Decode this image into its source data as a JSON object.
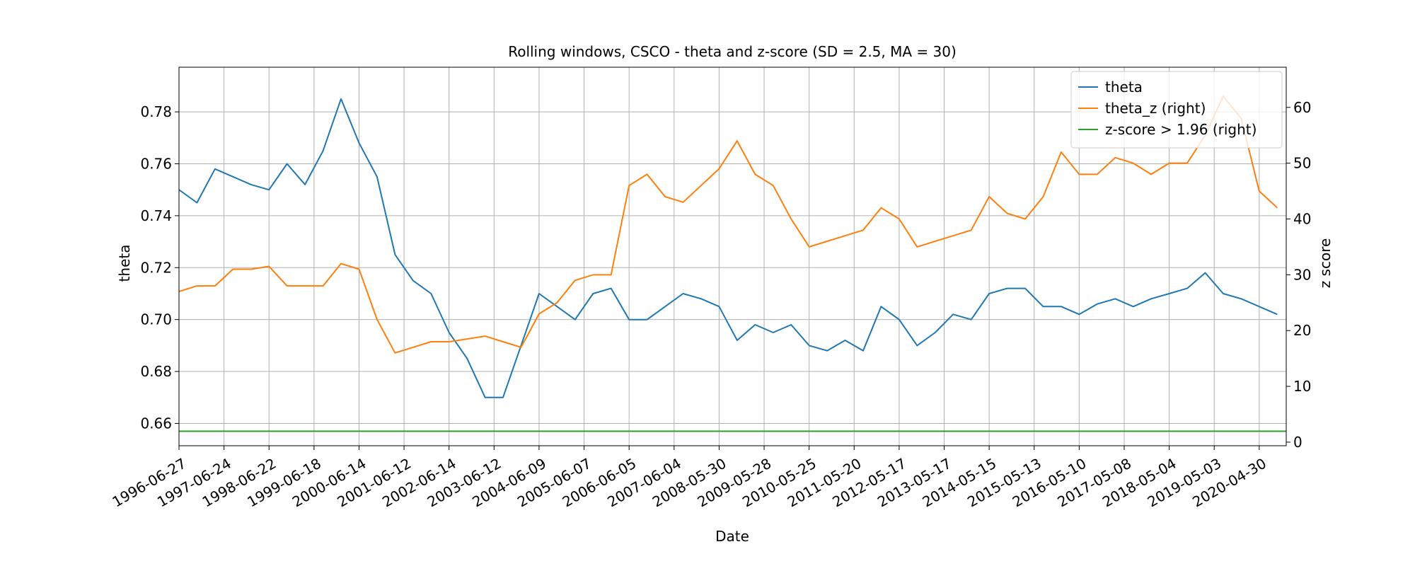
{
  "chart_data": {
    "type": "line",
    "title": "Rolling windows, CSCO - theta and z-score (SD = 2.5, MA = 30)",
    "x_label": "Date",
    "y_label": "theta",
    "y2_label": "z score",
    "grid": true,
    "legend": "upper right",
    "xlim": [
      0,
      6150
    ],
    "xticks": [
      {
        "value": 0,
        "label": "1996-06-27"
      },
      {
        "value": 250,
        "label": "1997-06-24"
      },
      {
        "value": 500,
        "label": "1998-06-22"
      },
      {
        "value": 750,
        "label": "1999-06-18"
      },
      {
        "value": 1000,
        "label": "2000-06-14"
      },
      {
        "value": 1250,
        "label": "2001-06-12"
      },
      {
        "value": 1500,
        "label": "2002-06-14"
      },
      {
        "value": 1750,
        "label": "2003-06-12"
      },
      {
        "value": 2000,
        "label": "2004-06-09"
      },
      {
        "value": 2250,
        "label": "2005-06-07"
      },
      {
        "value": 2500,
        "label": "2006-06-05"
      },
      {
        "value": 2750,
        "label": "2007-06-04"
      },
      {
        "value": 3000,
        "label": "2008-05-30"
      },
      {
        "value": 3250,
        "label": "2009-05-28"
      },
      {
        "value": 3500,
        "label": "2010-05-25"
      },
      {
        "value": 3750,
        "label": "2011-05-20"
      },
      {
        "value": 4000,
        "label": "2012-05-17"
      },
      {
        "value": 4250,
        "label": "2013-05-17"
      },
      {
        "value": 4500,
        "label": "2014-05-15"
      },
      {
        "value": 4750,
        "label": "2015-05-13"
      },
      {
        "value": 5000,
        "label": "2016-05-10"
      },
      {
        "value": 5250,
        "label": "2017-05-08"
      },
      {
        "value": 5500,
        "label": "2018-05-04"
      },
      {
        "value": 5750,
        "label": "2019-05-03"
      },
      {
        "value": 6000,
        "label": "2020-04-30"
      }
    ],
    "ylim": [
      0.6514,
      0.7972
    ],
    "yticks": [
      0.66,
      0.68,
      {
        "value": 0.7,
        "label": "0.70"
      },
      0.72,
      0.74,
      0.76,
      0.78
    ],
    "y2lim": [
      -0.64,
      67.2
    ],
    "y2ticks": [
      0,
      10,
      20,
      30,
      40,
      50,
      60
    ],
    "x": [
      0,
      100,
      200,
      300,
      400,
      500,
      600,
      700,
      800,
      900,
      1000,
      1100,
      1200,
      1300,
      1400,
      1500,
      1600,
      1700,
      1800,
      1900,
      2000,
      2100,
      2200,
      2300,
      2400,
      2500,
      2600,
      2700,
      2800,
      2900,
      3000,
      3100,
      3200,
      3300,
      3400,
      3500,
      3600,
      3700,
      3800,
      3900,
      4000,
      4100,
      4200,
      4300,
      4400,
      4500,
      4600,
      4700,
      4800,
      4900,
      5000,
      5100,
      5200,
      5300,
      5400,
      5500,
      5600,
      5700,
      5800,
      5900,
      6000,
      6100
    ],
    "series": [
      {
        "name": "theta",
        "color": "#1f77b4",
        "axis": "y",
        "values": [
          0.75,
          0.745,
          0.758,
          0.755,
          0.752,
          0.75,
          0.76,
          0.752,
          0.765,
          0.785,
          0.768,
          0.755,
          0.725,
          0.715,
          0.71,
          0.695,
          0.685,
          0.67,
          0.67,
          0.69,
          0.71,
          0.705,
          0.7,
          0.71,
          0.712,
          0.7,
          0.7,
          0.705,
          0.71,
          0.708,
          0.705,
          0.692,
          0.698,
          0.695,
          0.698,
          0.69,
          0.688,
          0.692,
          0.688,
          0.705,
          0.7,
          0.69,
          0.695,
          0.702,
          0.7,
          0.71,
          0.712,
          0.712,
          0.705,
          0.705,
          0.702,
          0.706,
          0.708,
          0.705,
          0.708,
          0.71,
          0.712,
          0.718,
          0.71,
          0.708,
          0.705,
          0.702
        ]
      },
      {
        "name": "theta_z (right)",
        "color": "#ff7f0e",
        "axis": "y2",
        "values": [
          27,
          28,
          28,
          31,
          31,
          31.5,
          28,
          28,
          28,
          32,
          31,
          22,
          16,
          17,
          18,
          18,
          18.5,
          19,
          18,
          17,
          23,
          25,
          29,
          30,
          30,
          46,
          48,
          44,
          43,
          46,
          49,
          54,
          48,
          46,
          40,
          35,
          36,
          37,
          38,
          42,
          40,
          35,
          36,
          37,
          38,
          44,
          41,
          40,
          44,
          52,
          48,
          48,
          51,
          50,
          48,
          50,
          50,
          55,
          62,
          58,
          45,
          42
        ]
      },
      {
        "name": "z-score > 1.96 (right)",
        "color": "#2ca02c",
        "axis": "y2",
        "x": [
          0,
          6150
        ],
        "values": [
          1.96,
          1.96
        ]
      }
    ]
  }
}
